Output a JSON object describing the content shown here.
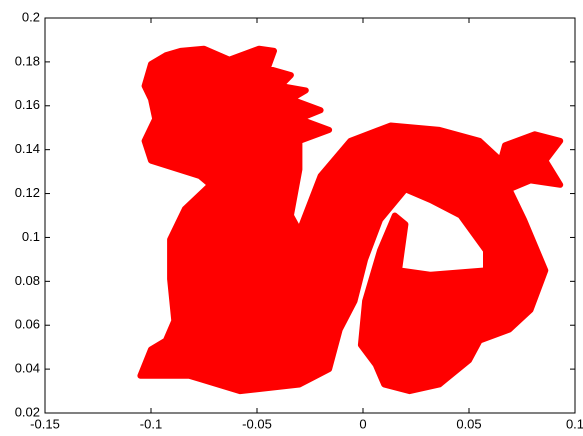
{
  "chart_data": {
    "type": "fill",
    "color": "#ff0000",
    "xlim": [
      -0.15,
      0.1
    ],
    "xticks": [
      -0.15,
      -0.1,
      -0.05,
      0,
      0.05,
      0.1
    ],
    "ylim": [
      0.02,
      0.2
    ],
    "yticks": [
      0.02,
      0.04,
      0.06,
      0.08,
      0.1,
      0.12,
      0.14,
      0.16,
      0.18,
      0.2
    ],
    "grid": false,
    "x": [
      -0.086,
      -0.075,
      -0.063,
      -0.049,
      -0.042,
      -0.045,
      -0.034,
      -0.039,
      -0.027,
      -0.034,
      -0.02,
      -0.03,
      -0.016,
      -0.03,
      -0.03,
      -0.034,
      -0.03,
      -0.02,
      -0.006,
      0.013,
      0.036,
      0.055,
      0.065,
      0.067,
      0.081,
      0.093,
      0.086,
      0.093,
      0.079,
      0.069,
      0.076,
      0.086,
      0.079,
      0.069,
      0.055,
      0.05,
      0.036,
      0.022,
      0.01,
      0.006,
      -0.001,
      0.001,
      0.008,
      0.015,
      0.02,
      0.017,
      0.032,
      0.058,
      0.058,
      0.046,
      0.032,
      0.02,
      0.008,
      0.001,
      -0.004,
      -0.011,
      -0.016,
      -0.03,
      -0.058,
      -0.082,
      -0.096,
      -0.105,
      -0.1,
      -0.093,
      -0.089,
      -0.091,
      -0.091,
      -0.084,
      -0.072,
      -0.077,
      -0.1,
      -0.103,
      -0.098,
      -0.1,
      -0.103,
      -0.1,
      -0.093
    ],
    "y": [
      0.185,
      0.186,
      0.181,
      0.186,
      0.185,
      0.177,
      0.174,
      0.169,
      0.167,
      0.163,
      0.158,
      0.154,
      0.149,
      0.144,
      0.131,
      0.11,
      0.103,
      0.128,
      0.144,
      0.151,
      0.149,
      0.144,
      0.135,
      0.142,
      0.147,
      0.144,
      0.135,
      0.124,
      0.126,
      0.122,
      0.108,
      0.085,
      0.067,
      0.058,
      0.053,
      0.044,
      0.033,
      0.03,
      0.033,
      0.042,
      0.051,
      0.071,
      0.094,
      0.11,
      0.106,
      0.085,
      0.083,
      0.085,
      0.094,
      0.11,
      0.117,
      0.122,
      0.108,
      0.09,
      0.071,
      0.058,
      0.04,
      0.033,
      0.03,
      0.037,
      0.037,
      0.037,
      0.049,
      0.053,
      0.062,
      0.081,
      0.099,
      0.113,
      0.124,
      0.128,
      0.135,
      0.144,
      0.154,
      0.163,
      0.169,
      0.179,
      0.183
    ]
  }
}
